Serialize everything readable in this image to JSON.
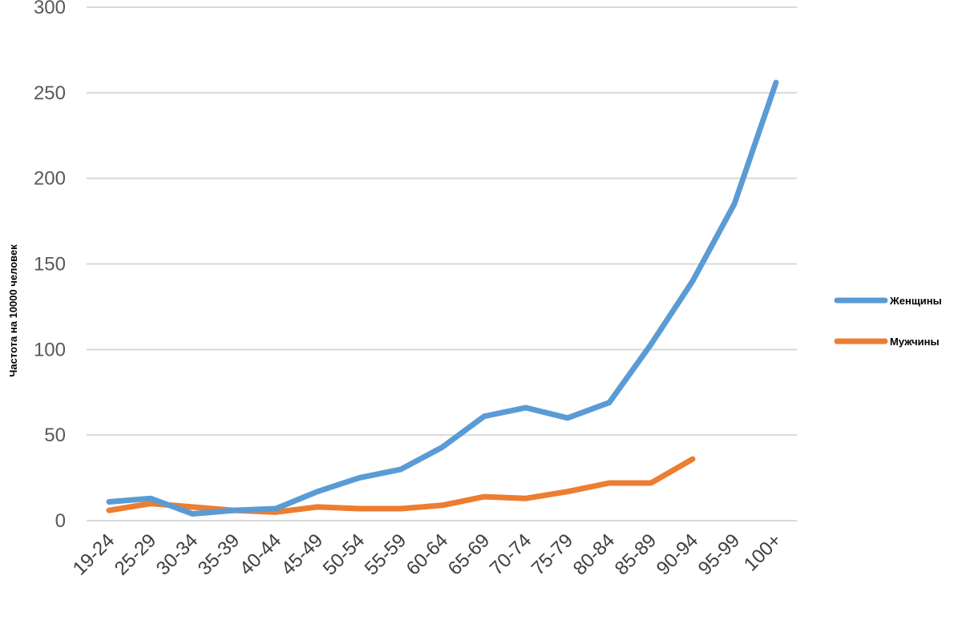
{
  "chart_data": {
    "type": "line",
    "ylabel": "Частота на 10000 человек",
    "ylim": [
      0,
      300
    ],
    "yticks": [
      0,
      50,
      100,
      150,
      200,
      250,
      300
    ],
    "grid": true,
    "legend_position": "right",
    "categories": [
      "19-24",
      "25-29",
      "30-34",
      "35-39",
      "40-44",
      "45-49",
      "50-54",
      "55-59",
      "60-64",
      "65-69",
      "70-74",
      "75-79",
      "80-84",
      "85-89",
      "90-94",
      "95-99",
      "100+"
    ],
    "series": [
      {
        "name": "Женщины",
        "color": "#5b9bd5",
        "values": [
          11,
          13,
          4,
          6,
          7,
          17,
          25,
          30,
          43,
          61,
          66,
          60,
          69,
          103,
          140,
          185,
          256
        ]
      },
      {
        "name": "Мужчины",
        "color": "#ed7d31",
        "values": [
          6,
          10,
          8,
          6,
          5,
          8,
          7,
          7,
          9,
          14,
          13,
          17,
          22,
          22,
          36,
          null,
          null
        ]
      }
    ]
  }
}
